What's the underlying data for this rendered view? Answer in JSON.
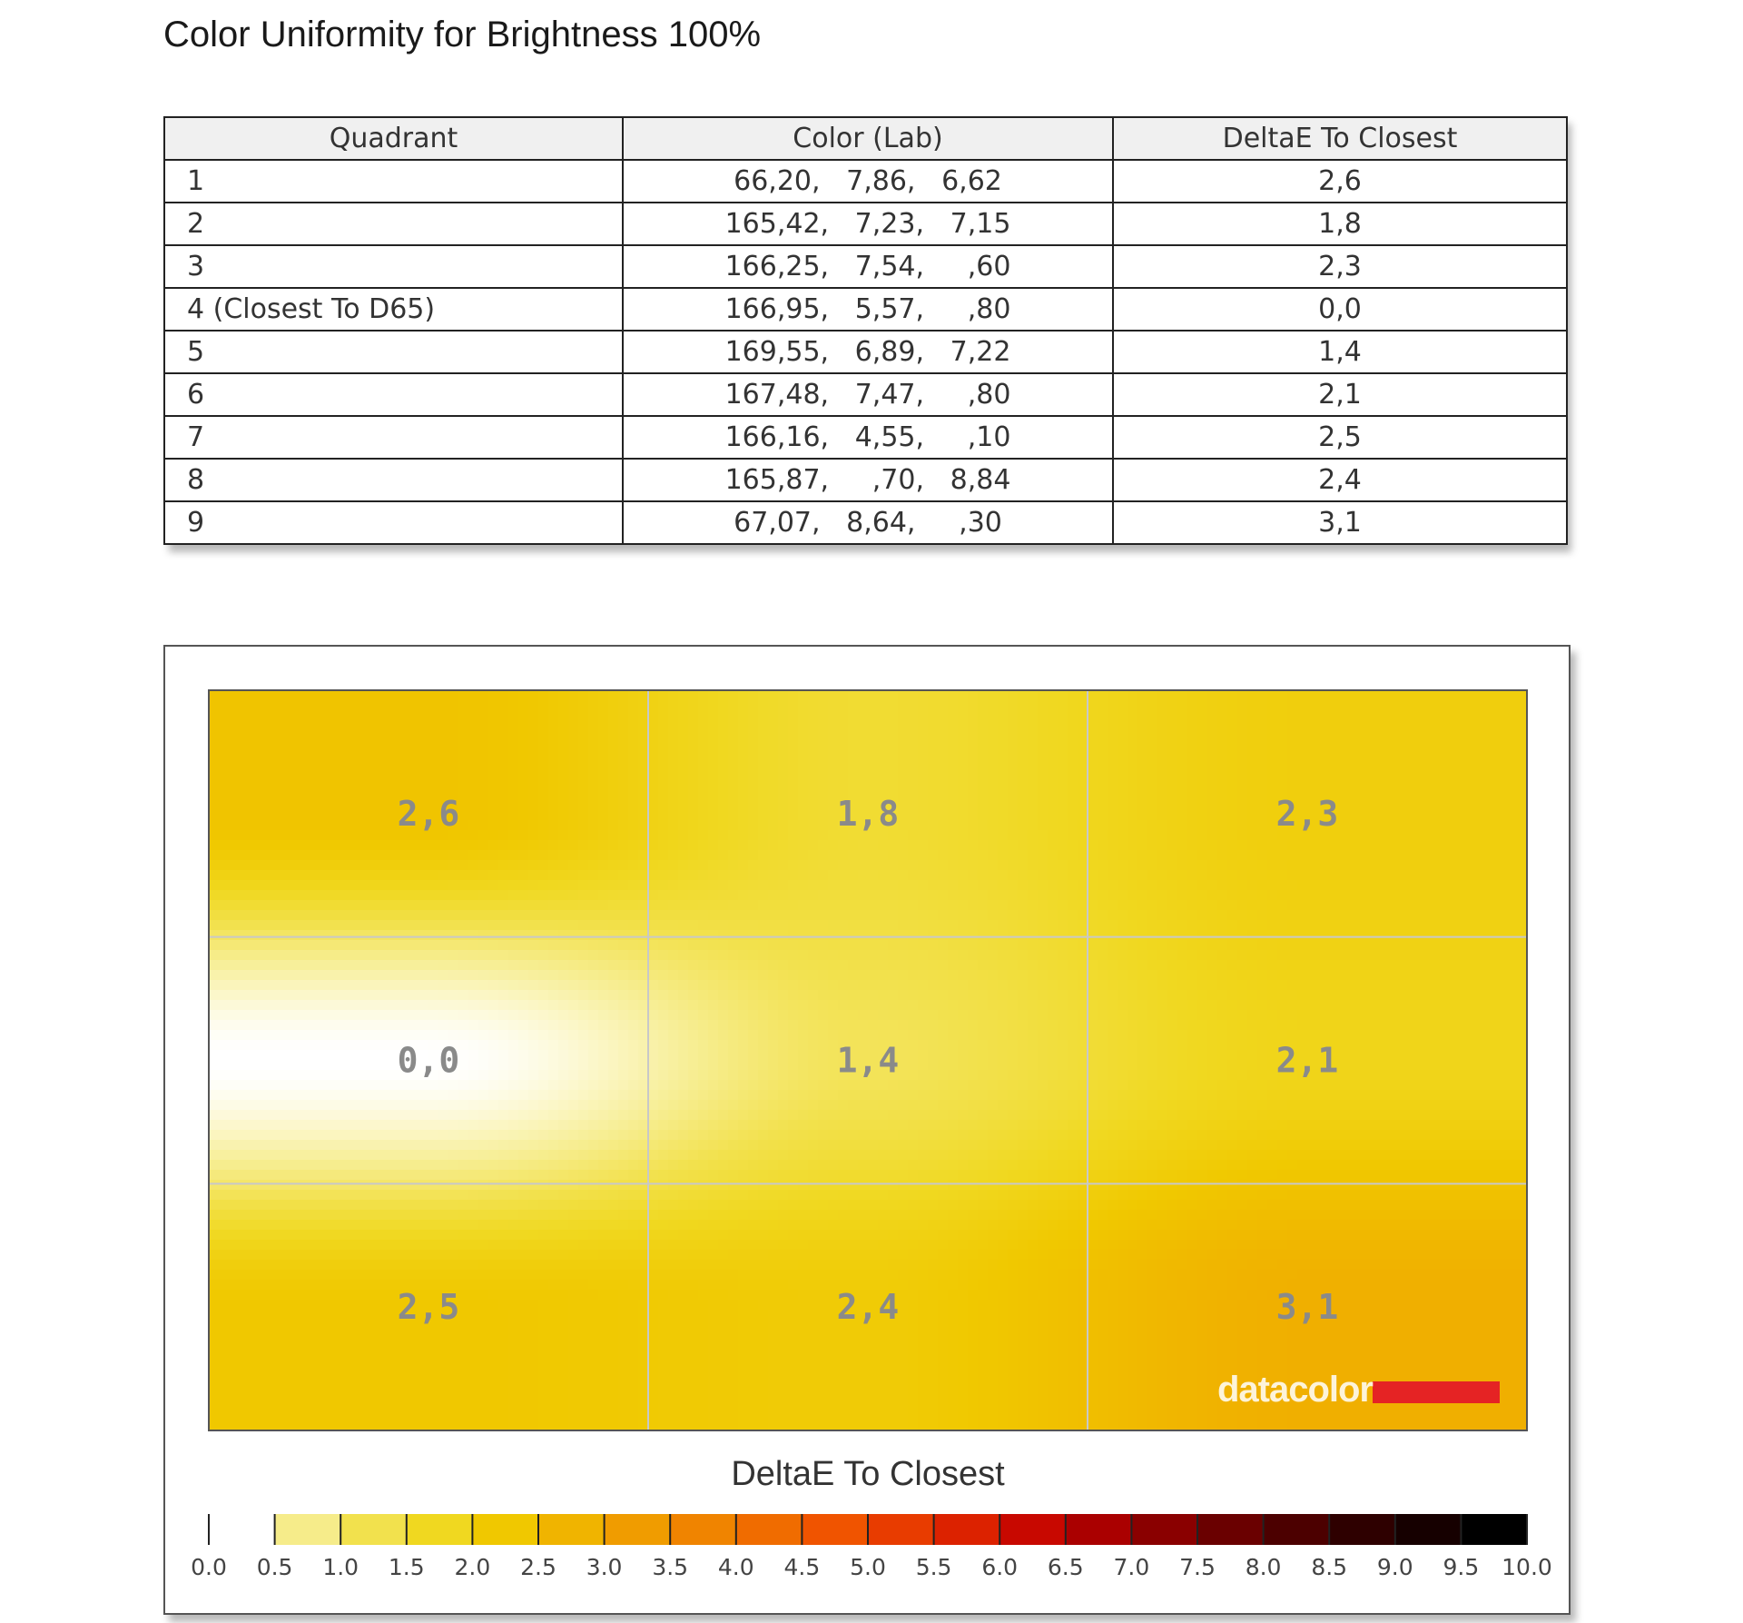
{
  "title": "Color Uniformity for Brightness 100%",
  "table": {
    "headers": [
      "Quadrant",
      "Color (Lab)",
      "DeltaE To Closest"
    ],
    "rows": [
      [
        "1",
        "66,20,   7,86,   6,62",
        "2,6"
      ],
      [
        "2",
        "165,42,   7,23,   7,15",
        "1,8"
      ],
      [
        "3",
        "166,25,   7,54,     ,60",
        "2,3"
      ],
      [
        "4 (Closest To D65)",
        "166,95,   5,57,     ,80",
        "0,0"
      ],
      [
        "5",
        "169,55,   6,89,   7,22",
        "1,4"
      ],
      [
        "6",
        "167,48,   7,47,     ,80",
        "2,1"
      ],
      [
        "7",
        "166,16,   4,55,     ,10",
        "2,5"
      ],
      [
        "8",
        "165,87,     ,70,   8,84",
        "2,4"
      ],
      [
        "9",
        "67,07,   8,64,     ,30",
        "3,1"
      ]
    ]
  },
  "chart_data": {
    "type": "heatmap",
    "grid": {
      "rows": 3,
      "cols": 3
    },
    "values": [
      [
        2.6,
        1.8,
        2.3
      ],
      [
        0.0,
        1.4,
        2.1
      ],
      [
        2.5,
        2.4,
        3.1
      ]
    ],
    "cell_labels": [
      [
        "2,6",
        "1,8",
        "2,3"
      ],
      [
        "0,0",
        "1,4",
        "2,1"
      ],
      [
        "2,5",
        "2,4",
        "3,1"
      ]
    ],
    "color_scale": {
      "title": "DeltaE To Closest",
      "range": [
        0,
        10
      ],
      "ticks": [
        "0.0",
        "0.5",
        "1.0",
        "1.5",
        "2.0",
        "2.5",
        "3.0",
        "3.5",
        "4.0",
        "4.5",
        "5.0",
        "5.5",
        "6.0",
        "6.5",
        "7.0",
        "7.5",
        "8.0",
        "8.5",
        "9.0",
        "9.5",
        "10.0"
      ],
      "colors": [
        "#ffffff",
        "#fbf6c4",
        "#f6ec8a",
        "#f2e14d",
        "#f0d820",
        "#f0c800",
        "#f0b400",
        "#f09c00",
        "#f08400",
        "#f06c00",
        "#f05400",
        "#e83c00",
        "#dc2200",
        "#c80800",
        "#aa0000",
        "#8a0000",
        "#6a0000",
        "#4c0000",
        "#2e0000",
        "#160000",
        "#000000"
      ]
    },
    "watermark": "datacolor",
    "accent_color": "#e52324"
  }
}
